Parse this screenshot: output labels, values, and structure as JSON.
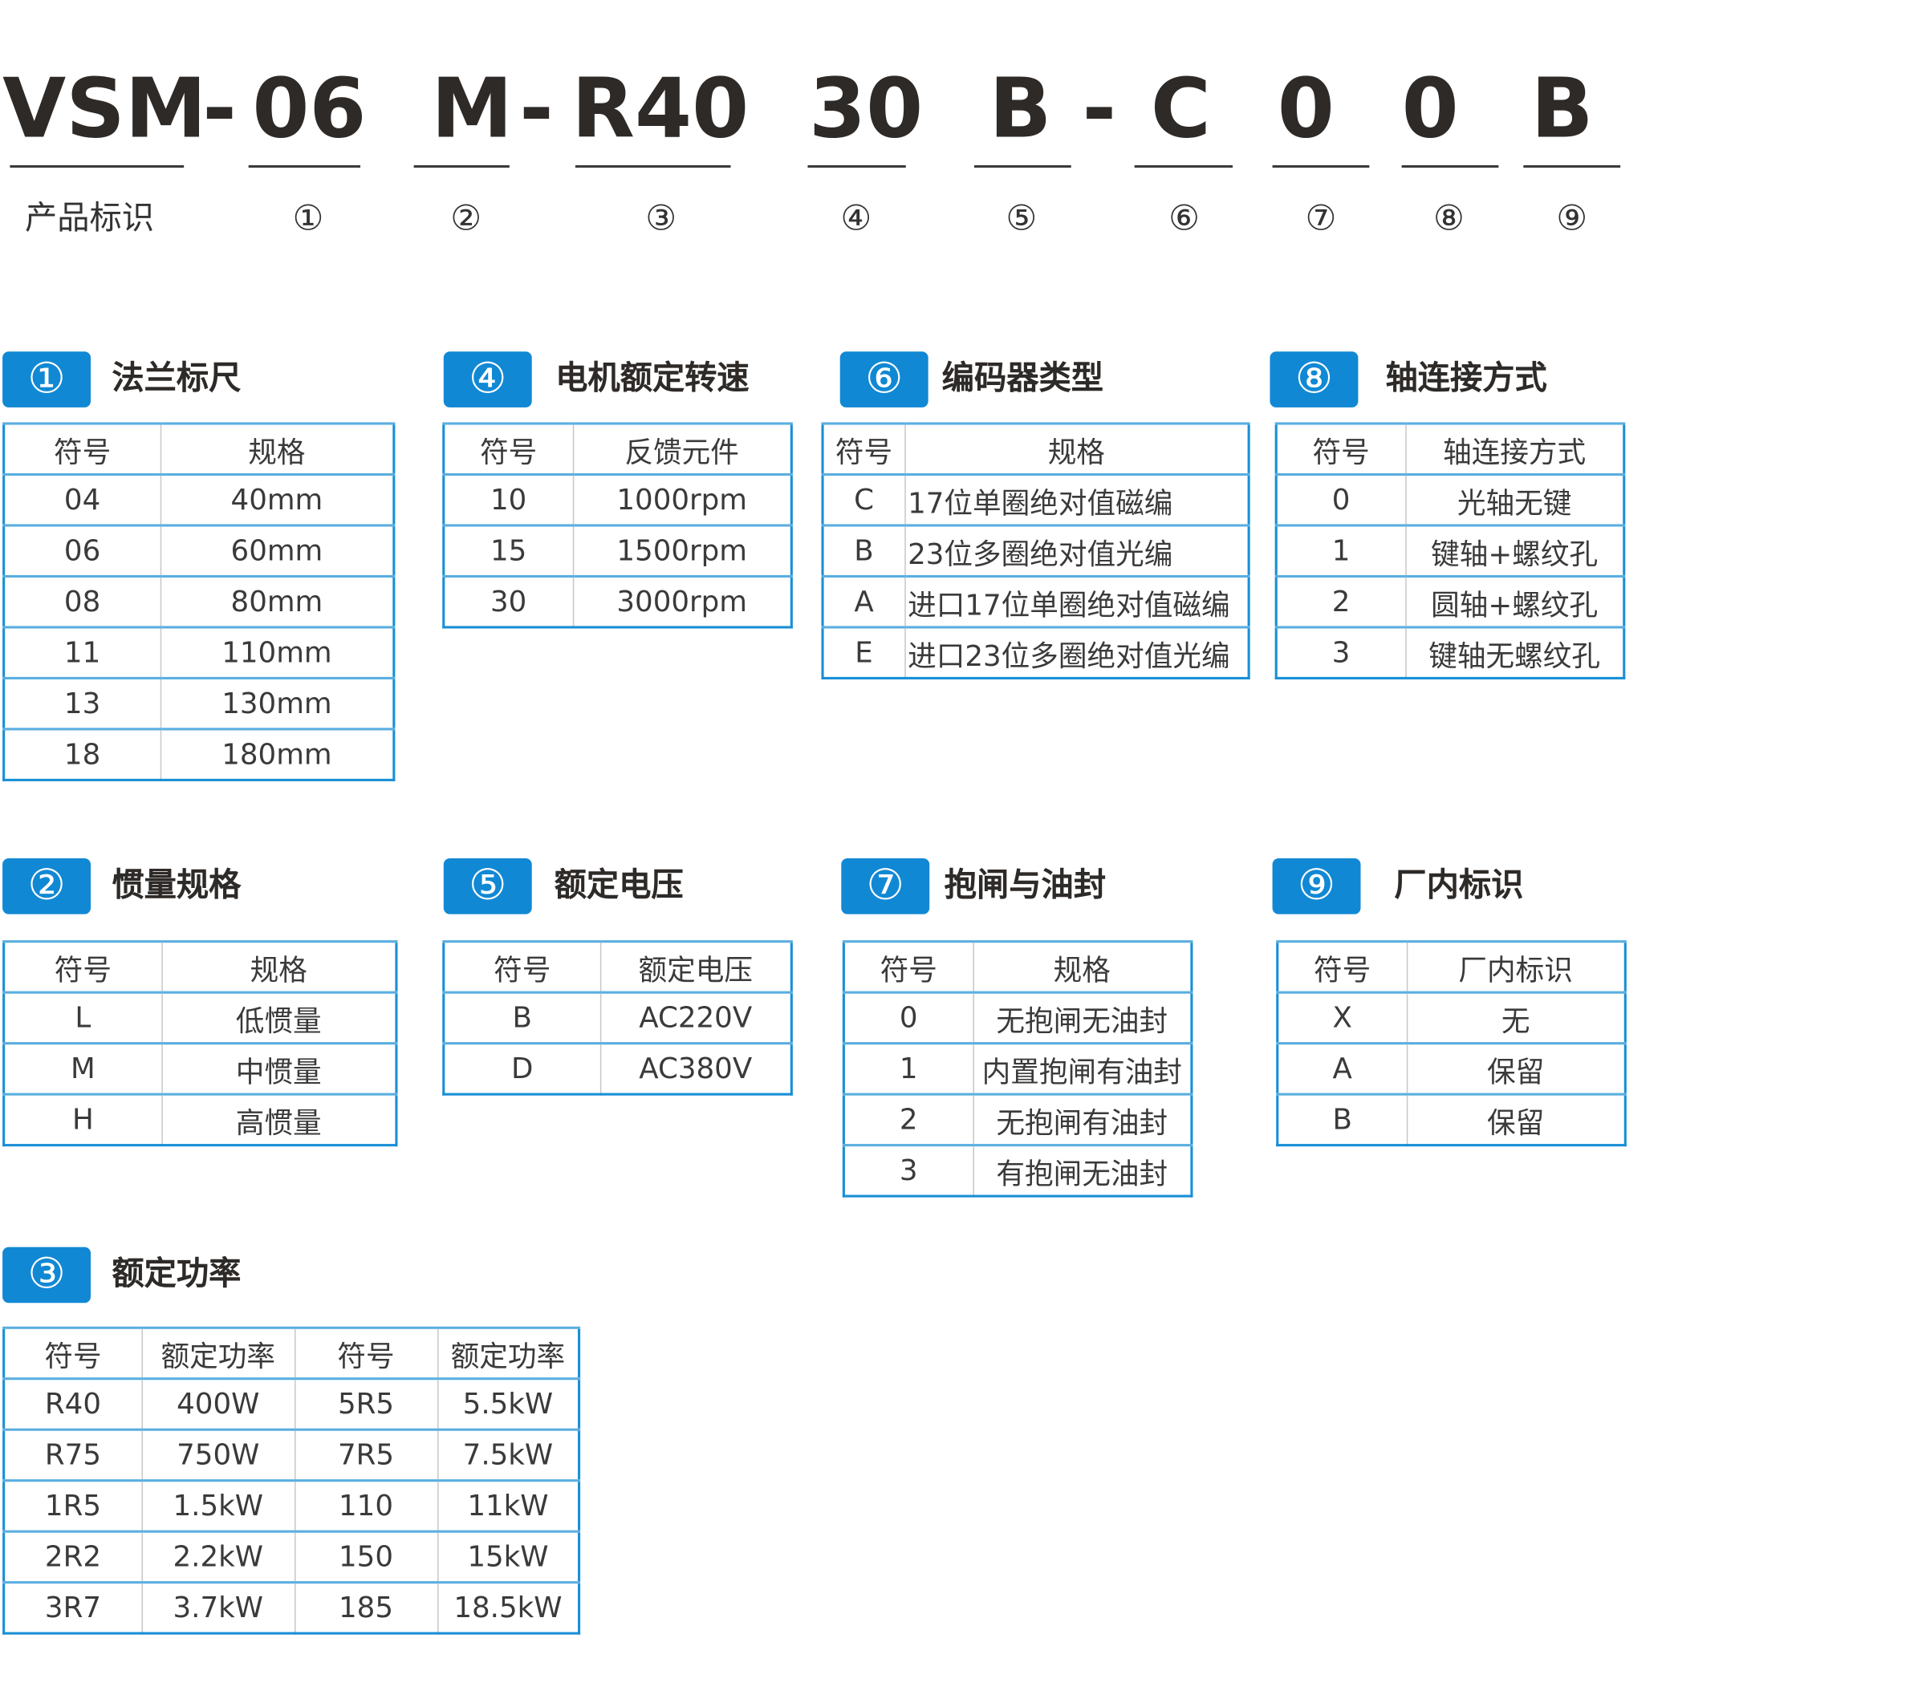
{
  "colors": {
    "accent": "#1188d4",
    "text": "#2e2a28"
  },
  "code": {
    "segments": [
      "VSM",
      "-",
      "06",
      "M",
      "-",
      "R40",
      "30",
      "B",
      "-",
      "C",
      "0",
      "0",
      "B"
    ],
    "label": "产品标识",
    "markers": [
      "①",
      "②",
      "③",
      "④",
      "⑤",
      "⑥",
      "⑦",
      "⑧",
      "⑨"
    ]
  },
  "sections": [
    {
      "num": "①",
      "title": "法兰标尺",
      "headers": [
        "符号",
        "规格"
      ],
      "rows": [
        [
          "04",
          "40mm"
        ],
        [
          "06",
          "60mm"
        ],
        [
          "08",
          "80mm"
        ],
        [
          "11",
          "110mm"
        ],
        [
          "13",
          "130mm"
        ],
        [
          "18",
          "180mm"
        ]
      ]
    },
    {
      "num": "④",
      "title": "电机额定转速",
      "headers": [
        "符号",
        "反馈元件"
      ],
      "rows": [
        [
          "10",
          "1000rpm"
        ],
        [
          "15",
          "1500rpm"
        ],
        [
          "30",
          "3000rpm"
        ]
      ]
    },
    {
      "num": "⑥",
      "title": "编码器类型",
      "headers": [
        "符号",
        "规格"
      ],
      "rows": [
        [
          "C",
          "17位单圈绝对值磁编"
        ],
        [
          "B",
          "23位多圈绝对值光编"
        ],
        [
          "A",
          "进口17位单圈绝对值磁编"
        ],
        [
          "E",
          "进口23位多圈绝对值光编"
        ]
      ]
    },
    {
      "num": "⑧",
      "title": "轴连接方式",
      "headers": [
        "符号",
        "轴连接方式"
      ],
      "rows": [
        [
          "0",
          "光轴无键"
        ],
        [
          "1",
          "键轴+螺纹孔"
        ],
        [
          "2",
          "圆轴+螺纹孔"
        ],
        [
          "3",
          "键轴无螺纹孔"
        ]
      ]
    },
    {
      "num": "②",
      "title": "惯量规格",
      "headers": [
        "符号",
        "规格"
      ],
      "rows": [
        [
          "L",
          "低惯量"
        ],
        [
          "M",
          "中惯量"
        ],
        [
          "H",
          "高惯量"
        ]
      ]
    },
    {
      "num": "⑤",
      "title": "额定电压",
      "headers": [
        "符号",
        "额定电压"
      ],
      "rows": [
        [
          "B",
          "AC220V"
        ],
        [
          "D",
          "AC380V"
        ]
      ]
    },
    {
      "num": "⑦",
      "title": "抱闸与油封",
      "headers": [
        "符号",
        "规格"
      ],
      "rows": [
        [
          "0",
          "无抱闸无油封"
        ],
        [
          "1",
          "内置抱闸有油封"
        ],
        [
          "2",
          "无抱闸有油封"
        ],
        [
          "3",
          "有抱闸无油封"
        ]
      ]
    },
    {
      "num": "⑨",
      "title": "厂内标识",
      "headers": [
        "符号",
        "厂内标识"
      ],
      "rows": [
        [
          "X",
          "无"
        ],
        [
          "A",
          "保留"
        ],
        [
          "B",
          "保留"
        ]
      ]
    },
    {
      "num": "③",
      "title": "额定功率",
      "headers": [
        "符号",
        "额定功率",
        "符号",
        "额定功率"
      ],
      "rows": [
        [
          "R40",
          "400W",
          "5R5",
          "5.5kW"
        ],
        [
          "R75",
          "750W",
          "7R5",
          "7.5kW"
        ],
        [
          "1R5",
          "1.5kW",
          "110",
          "11kW"
        ],
        [
          "2R2",
          "2.2kW",
          "150",
          "15kW"
        ],
        [
          "3R7",
          "3.7kW",
          "185",
          "18.5kW"
        ]
      ]
    }
  ]
}
